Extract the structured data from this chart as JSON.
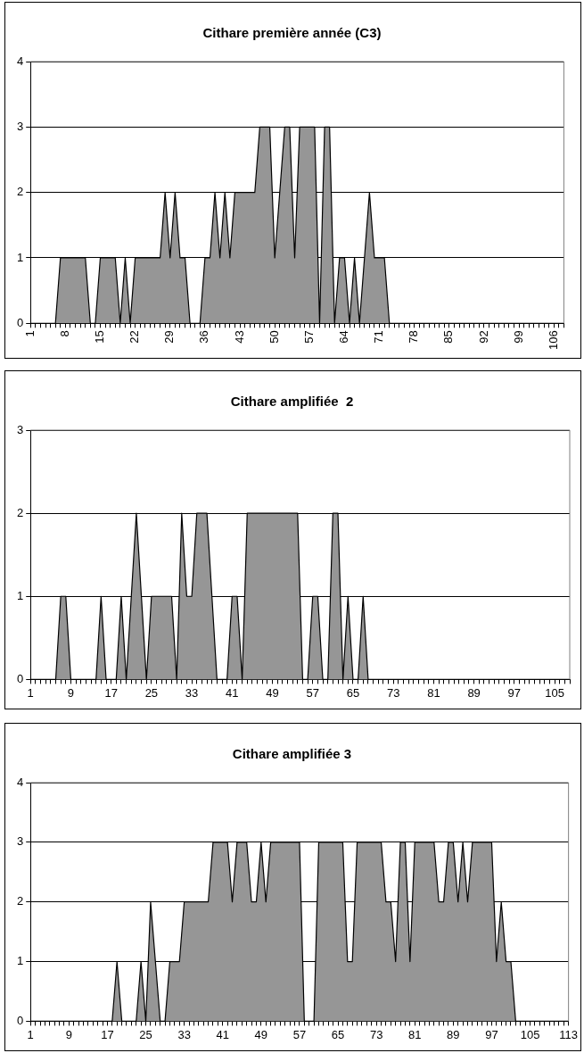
{
  "chart_data": [
    {
      "type": "area",
      "title": "Cithare première année (C3)",
      "categories": [
        "1",
        null,
        null,
        null,
        null,
        null,
        null,
        "8",
        null,
        null,
        null,
        null,
        null,
        null,
        "15",
        null,
        null,
        null,
        null,
        null,
        null,
        "22",
        null,
        null,
        null,
        null,
        null,
        null,
        "29",
        null,
        null,
        null,
        null,
        null,
        null,
        "36",
        null,
        null,
        null,
        null,
        null,
        null,
        "43",
        null,
        null,
        null,
        null,
        null,
        null,
        "50",
        null,
        null,
        null,
        null,
        null,
        null,
        "57",
        null,
        null,
        null,
        null,
        null,
        null,
        "64",
        null,
        null,
        null,
        null,
        null,
        null,
        "71",
        null,
        null,
        null,
        null,
        null,
        null,
        "78",
        null,
        null,
        null,
        null,
        null,
        null,
        "85",
        null,
        null,
        null,
        null,
        null,
        null,
        "92",
        null,
        null,
        null,
        null,
        null,
        null,
        "99",
        null,
        null,
        null,
        null,
        null,
        null,
        "106",
        null,
        null
      ],
      "series": [
        {
          "color": "#969696",
          "values": [
            0,
            0,
            0,
            0,
            0,
            0,
            1,
            1,
            1,
            1,
            1,
            1,
            0,
            0,
            1,
            1,
            1,
            1,
            0,
            1,
            0,
            1,
            1,
            1,
            1,
            1,
            1,
            2,
            1,
            2,
            1,
            1,
            0,
            0,
            0,
            1,
            1,
            2,
            1,
            2,
            1,
            2,
            2,
            2,
            2,
            2,
            3,
            3,
            3,
            1,
            2,
            3,
            3,
            1,
            3,
            3,
            3,
            3,
            0,
            3,
            3,
            0,
            1,
            1,
            0,
            1,
            0,
            1,
            2,
            1,
            1,
            1,
            0,
            0,
            0,
            0,
            0,
            0,
            0,
            0,
            0,
            0,
            0,
            0,
            0,
            0,
            0,
            0,
            0,
            0,
            0,
            0,
            0,
            0,
            0,
            0,
            0,
            0,
            0,
            0,
            0,
            0,
            0,
            0,
            0,
            0,
            0,
            0
          ]
        }
      ],
      "ylim": [
        0,
        4
      ],
      "yticks": [
        0,
        1,
        2,
        3,
        4
      ],
      "grid": "y"
    },
    {
      "type": "area",
      "title": "Cithare amplifiée  2",
      "categories": [
        "1",
        null,
        null,
        null,
        null,
        null,
        null,
        null,
        "9",
        null,
        null,
        null,
        null,
        null,
        null,
        null,
        "17",
        null,
        null,
        null,
        null,
        null,
        null,
        null,
        "25",
        null,
        null,
        null,
        null,
        null,
        null,
        null,
        "33",
        null,
        null,
        null,
        null,
        null,
        null,
        null,
        "41",
        null,
        null,
        null,
        null,
        null,
        null,
        null,
        "49",
        null,
        null,
        null,
        null,
        null,
        null,
        null,
        "57",
        null,
        null,
        null,
        null,
        null,
        null,
        null,
        "65",
        null,
        null,
        null,
        null,
        null,
        null,
        null,
        "73",
        null,
        null,
        null,
        null,
        null,
        null,
        null,
        "81",
        null,
        null,
        null,
        null,
        null,
        null,
        null,
        "89",
        null,
        null,
        null,
        null,
        null,
        null,
        null,
        "97",
        null,
        null,
        null,
        null,
        null,
        null,
        null,
        "105",
        null,
        null,
        null
      ],
      "series": [
        {
          "color": "#969696",
          "values": [
            0,
            0,
            0,
            0,
            0,
            0,
            1,
            1,
            0,
            0,
            0,
            0,
            0,
            0,
            1,
            0,
            0,
            0,
            1,
            0,
            1,
            2,
            1,
            0,
            1,
            1,
            1,
            1,
            1,
            0,
            2,
            1,
            1,
            2,
            2,
            2,
            1,
            0,
            0,
            0,
            1,
            1,
            0,
            2,
            2,
            2,
            2,
            2,
            2,
            2,
            2,
            2,
            2,
            2,
            0,
            0,
            1,
            1,
            0,
            0,
            2,
            2,
            0,
            1,
            0,
            0,
            1,
            0,
            0,
            0,
            0,
            0,
            0,
            0,
            0,
            0,
            0,
            0,
            0,
            0,
            0,
            0,
            0,
            0,
            0,
            0,
            0,
            0,
            0,
            0,
            0,
            0,
            0,
            0,
            0,
            0,
            0,
            0,
            0,
            0,
            0,
            0,
            0,
            0,
            0,
            0,
            0,
            0
          ]
        }
      ],
      "ylim": [
        0,
        3
      ],
      "yticks": [
        0,
        1,
        2,
        3
      ],
      "grid": "y"
    },
    {
      "type": "area",
      "title": "Cithare amplifiée 3",
      "categories": [
        "1",
        null,
        null,
        null,
        null,
        null,
        null,
        null,
        "9",
        null,
        null,
        null,
        null,
        null,
        null,
        null,
        "17",
        null,
        null,
        null,
        null,
        null,
        null,
        null,
        "25",
        null,
        null,
        null,
        null,
        null,
        null,
        null,
        "33",
        null,
        null,
        null,
        null,
        null,
        null,
        null,
        "41",
        null,
        null,
        null,
        null,
        null,
        null,
        null,
        "49",
        null,
        null,
        null,
        null,
        null,
        null,
        null,
        "57",
        null,
        null,
        null,
        null,
        null,
        null,
        null,
        "65",
        null,
        null,
        null,
        null,
        null,
        null,
        null,
        "73",
        null,
        null,
        null,
        null,
        null,
        null,
        null,
        "81",
        null,
        null,
        null,
        null,
        null,
        null,
        null,
        "89",
        null,
        null,
        null,
        null,
        null,
        null,
        null,
        "97",
        null,
        null,
        null,
        null,
        null,
        null,
        null,
        "105",
        null,
        null,
        null,
        null,
        null,
        null,
        null,
        "113"
      ],
      "series": [
        {
          "color": "#969696",
          "values": [
            0,
            0,
            0,
            0,
            0,
            0,
            0,
            0,
            0,
            0,
            0,
            0,
            0,
            0,
            0,
            0,
            0,
            0,
            1,
            0,
            0,
            0,
            0,
            1,
            0,
            2,
            1,
            0,
            0,
            1,
            1,
            1,
            2,
            2,
            2,
            2,
            2,
            2,
            3,
            3,
            3,
            3,
            2,
            3,
            3,
            3,
            2,
            2,
            3,
            2,
            3,
            3,
            3,
            3,
            3,
            3,
            3,
            0,
            0,
            0,
            3,
            3,
            3,
            3,
            3,
            3,
            1,
            1,
            3,
            3,
            3,
            3,
            3,
            3,
            2,
            2,
            1,
            3,
            3,
            1,
            3,
            3,
            3,
            3,
            3,
            2,
            2,
            3,
            3,
            2,
            3,
            2,
            3,
            3,
            3,
            3,
            3,
            1,
            2,
            1,
            1,
            0,
            0,
            0,
            0,
            0,
            0,
            0,
            0,
            0,
            0,
            0,
            0
          ]
        }
      ],
      "ylim": [
        0,
        4
      ],
      "yticks": [
        0,
        1,
        2,
        3,
        4
      ],
      "grid": "y"
    }
  ]
}
